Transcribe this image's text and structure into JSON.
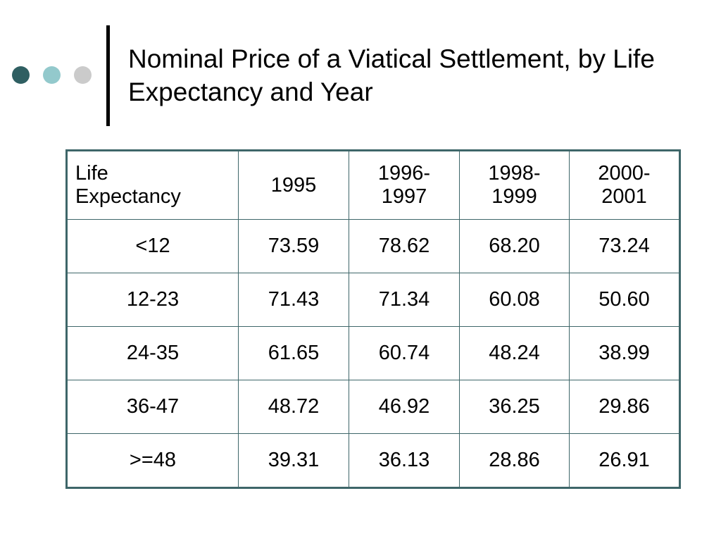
{
  "title": "Nominal Price of a Viatical Settlement, by Life Expectancy and Year",
  "colors": {
    "dot_dark": "#2f5f62",
    "dot_light": "#93c9cc",
    "dot_grey": "#cbcbcb",
    "table_border": "#3e6669"
  },
  "table": {
    "headers": [
      [
        "Life",
        "Expectancy"
      ],
      [
        "1995"
      ],
      [
        "1996-",
        "1997"
      ],
      [
        "1998-",
        "1999"
      ],
      [
        "2000-",
        "2001"
      ]
    ],
    "rows": [
      [
        "<12",
        "73.59",
        "78.62",
        "68.20",
        "73.24"
      ],
      [
        "12-23",
        "71.43",
        "71.34",
        "60.08",
        "50.60"
      ],
      [
        "24-35",
        "61.65",
        "60.74",
        "48.24",
        "38.99"
      ],
      [
        "36-47",
        "48.72",
        "46.92",
        "36.25",
        "29.86"
      ],
      [
        ">=48",
        "39.31",
        "36.13",
        "28.86",
        "26.91"
      ]
    ]
  }
}
